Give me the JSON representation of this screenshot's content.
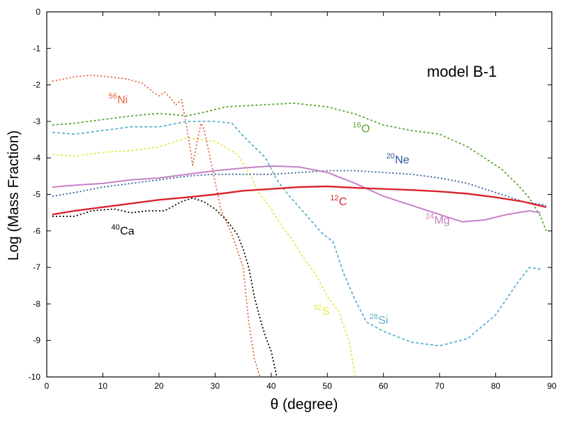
{
  "chart_data": {
    "type": "line",
    "title": "model B-1",
    "xlabel": "θ (degree)",
    "ylabel": "Log (Mass Fraction)",
    "xlim": [
      0,
      90
    ],
    "ylim": [
      -10,
      0
    ],
    "xticks": [
      0,
      10,
      20,
      30,
      40,
      50,
      60,
      70,
      80,
      90
    ],
    "yticks": [
      0,
      -1,
      -2,
      -3,
      -4,
      -5,
      -6,
      -7,
      -8,
      -9,
      -10
    ],
    "series": [
      {
        "name": "16O",
        "mass": "16",
        "element": "O",
        "color": "#5aa832",
        "dash": "3,3",
        "width": 1.8,
        "label_at": [
          54.5,
          -3.3
        ],
        "points": [
          [
            1,
            -3.1
          ],
          [
            5,
            -3.05
          ],
          [
            10,
            -2.95
          ],
          [
            15,
            -2.85
          ],
          [
            20,
            -2.78
          ],
          [
            25,
            -2.85
          ],
          [
            28,
            -2.75
          ],
          [
            32,
            -2.6
          ],
          [
            38,
            -2.55
          ],
          [
            44,
            -2.5
          ],
          [
            50,
            -2.6
          ],
          [
            55,
            -2.8
          ],
          [
            60,
            -3.1
          ],
          [
            65,
            -3.25
          ],
          [
            70,
            -3.35
          ],
          [
            75,
            -3.7
          ],
          [
            78,
            -4.0
          ],
          [
            81,
            -4.3
          ],
          [
            84,
            -4.75
          ],
          [
            86,
            -5.1
          ],
          [
            88,
            -5.6
          ],
          [
            89,
            -6.0
          ]
        ]
      },
      {
        "name": "28Si",
        "mass": "28",
        "element": "Si",
        "color": "#5fb0cf",
        "dash": "4,3",
        "width": 1.8,
        "label_at": [
          57.5,
          -8.55
        ],
        "points": [
          [
            1,
            -3.3
          ],
          [
            5,
            -3.35
          ],
          [
            10,
            -3.25
          ],
          [
            15,
            -3.15
          ],
          [
            20,
            -3.15
          ],
          [
            25,
            -3.0
          ],
          [
            30,
            -3.0
          ],
          [
            33,
            -3.05
          ],
          [
            35,
            -3.4
          ],
          [
            37,
            -3.7
          ],
          [
            39,
            -4.0
          ],
          [
            41,
            -4.6
          ],
          [
            43,
            -5.0
          ],
          [
            45,
            -5.35
          ],
          [
            47,
            -5.7
          ],
          [
            49,
            -6.05
          ],
          [
            51,
            -6.3
          ],
          [
            53,
            -7.2
          ],
          [
            55,
            -7.9
          ],
          [
            57,
            -8.5
          ],
          [
            60,
            -8.75
          ],
          [
            65,
            -9.05
          ],
          [
            70,
            -9.15
          ],
          [
            75,
            -8.95
          ],
          [
            80,
            -8.3
          ],
          [
            84,
            -7.4
          ],
          [
            86,
            -7.0
          ],
          [
            88,
            -7.05
          ]
        ]
      },
      {
        "name": "32S",
        "mass": "32",
        "element": "S",
        "color": "#e6e64b",
        "dash": "3,3",
        "width": 1.8,
        "label_at": [
          47.5,
          -8.3
        ],
        "points": [
          [
            1,
            -3.9
          ],
          [
            5,
            -3.95
          ],
          [
            10,
            -3.85
          ],
          [
            15,
            -3.8
          ],
          [
            20,
            -3.7
          ],
          [
            25,
            -3.45
          ],
          [
            30,
            -3.55
          ],
          [
            34,
            -3.9
          ],
          [
            36,
            -4.4
          ],
          [
            38,
            -5.0
          ],
          [
            40,
            -5.4
          ],
          [
            42,
            -5.9
          ],
          [
            44,
            -6.3
          ],
          [
            46,
            -6.8
          ],
          [
            48,
            -7.2
          ],
          [
            50,
            -7.8
          ],
          [
            52,
            -8.2
          ],
          [
            54,
            -9.1
          ],
          [
            55,
            -10.0
          ]
        ]
      },
      {
        "name": "56Ni",
        "mass": "56",
        "element": "Ni",
        "color": "#e0623b",
        "dash": "2,3",
        "width": 1.8,
        "label_at": [
          11,
          -2.5
        ],
        "points": [
          [
            1,
            -1.9
          ],
          [
            5,
            -1.78
          ],
          [
            8,
            -1.73
          ],
          [
            11,
            -1.78
          ],
          [
            14,
            -1.83
          ],
          [
            17,
            -1.95
          ],
          [
            19,
            -2.2
          ],
          [
            20,
            -2.3
          ],
          [
            21,
            -2.2
          ],
          [
            22,
            -2.35
          ],
          [
            23,
            -2.55
          ],
          [
            24,
            -2.4
          ],
          [
            25,
            -3.2
          ],
          [
            26,
            -4.2
          ],
          [
            27,
            -3.4
          ],
          [
            27.5,
            -3.05
          ],
          [
            28,
            -3.2
          ],
          [
            29,
            -3.9
          ],
          [
            31,
            -5.4
          ],
          [
            33,
            -6.1
          ],
          [
            35,
            -7.0
          ],
          [
            36,
            -8.5
          ],
          [
            37,
            -9.5
          ],
          [
            38,
            -10.0
          ]
        ]
      },
      {
        "name": "20Ne",
        "mass": "20",
        "element": "Ne",
        "color": "#2d5796",
        "dash": "2,3",
        "width": 1.8,
        "label_at": [
          60.5,
          -4.15
        ],
        "points": [
          [
            1,
            -5.05
          ],
          [
            5,
            -4.95
          ],
          [
            10,
            -4.8
          ],
          [
            15,
            -4.7
          ],
          [
            20,
            -4.6
          ],
          [
            25,
            -4.5
          ],
          [
            30,
            -4.45
          ],
          [
            35,
            -4.45
          ],
          [
            40,
            -4.45
          ],
          [
            45,
            -4.4
          ],
          [
            50,
            -4.35
          ],
          [
            55,
            -4.35
          ],
          [
            60,
            -4.4
          ],
          [
            65,
            -4.45
          ],
          [
            70,
            -4.55
          ],
          [
            75,
            -4.7
          ],
          [
            80,
            -4.95
          ],
          [
            85,
            -5.2
          ],
          [
            89,
            -5.3
          ]
        ]
      },
      {
        "name": "24Mg",
        "mass": "24",
        "element": "Mg",
        "color": "#c77fc5",
        "dash": "none",
        "width": 2,
        "label_at": [
          67.5,
          -5.8
        ],
        "points": [
          [
            1,
            -4.8
          ],
          [
            5,
            -4.75
          ],
          [
            10,
            -4.7
          ],
          [
            15,
            -4.6
          ],
          [
            20,
            -4.55
          ],
          [
            25,
            -4.45
          ],
          [
            30,
            -4.35
          ],
          [
            35,
            -4.28
          ],
          [
            40,
            -4.22
          ],
          [
            45,
            -4.25
          ],
          [
            50,
            -4.4
          ],
          [
            55,
            -4.7
          ],
          [
            60,
            -5.05
          ],
          [
            65,
            -5.3
          ],
          [
            70,
            -5.55
          ],
          [
            74,
            -5.75
          ],
          [
            78,
            -5.7
          ],
          [
            82,
            -5.55
          ],
          [
            86,
            -5.45
          ],
          [
            88,
            -5.5
          ]
        ]
      },
      {
        "name": "12C",
        "mass": "12",
        "element": "C",
        "color": "#d8252c",
        "dash": "none",
        "width": 2.4,
        "label_at": [
          50.5,
          -5.3
        ],
        "points": [
          [
            1,
            -5.55
          ],
          [
            5,
            -5.45
          ],
          [
            10,
            -5.35
          ],
          [
            15,
            -5.25
          ],
          [
            20,
            -5.15
          ],
          [
            25,
            -5.08
          ],
          [
            30,
            -5.0
          ],
          [
            35,
            -4.9
          ],
          [
            40,
            -4.85
          ],
          [
            45,
            -4.8
          ],
          [
            50,
            -4.78
          ],
          [
            55,
            -4.82
          ],
          [
            60,
            -4.85
          ],
          [
            65,
            -4.88
          ],
          [
            70,
            -4.92
          ],
          [
            75,
            -4.98
          ],
          [
            80,
            -5.08
          ],
          [
            85,
            -5.2
          ],
          [
            89,
            -5.35
          ]
        ]
      },
      {
        "name": "40Ca",
        "mass": "40",
        "element": "Ca",
        "color": "#000000",
        "dash": "2,3",
        "width": 1.8,
        "label_at": [
          11.5,
          -6.1
        ],
        "points": [
          [
            1,
            -5.6
          ],
          [
            5,
            -5.6
          ],
          [
            8,
            -5.45
          ],
          [
            12,
            -5.4
          ],
          [
            15,
            -5.5
          ],
          [
            18,
            -5.45
          ],
          [
            21,
            -5.45
          ],
          [
            24,
            -5.2
          ],
          [
            26,
            -5.1
          ],
          [
            28,
            -5.2
          ],
          [
            30,
            -5.4
          ],
          [
            32,
            -5.7
          ],
          [
            34,
            -6.1
          ],
          [
            35,
            -6.5
          ],
          [
            36,
            -7.0
          ],
          [
            37,
            -7.8
          ],
          [
            38,
            -8.4
          ],
          [
            39,
            -8.9
          ],
          [
            40,
            -9.3
          ],
          [
            41,
            -10.0
          ]
        ]
      }
    ]
  }
}
